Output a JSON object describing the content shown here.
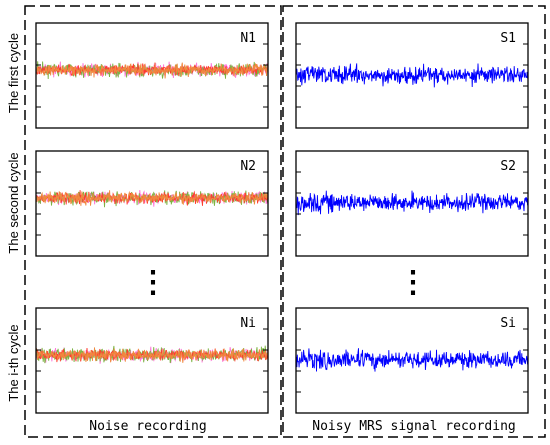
{
  "colors": {
    "noise_primary": "#f0883f",
    "noise_secondary": "#7cb342",
    "noise_tertiary": "#ff3b30",
    "noise_quaternary": "#ff77d9",
    "signal": "#0000ff",
    "border": "#000000"
  },
  "rows": [
    {
      "cycle_label": "The first cycle",
      "noise_label": "N1",
      "signal_label": "S1"
    },
    {
      "cycle_label": "The second cycle",
      "noise_label": "N2",
      "signal_label": "S2"
    },
    {
      "cycle_label": "The i-th cycle",
      "noise_label": "Ni",
      "signal_label": "Si"
    }
  ],
  "ellipsis": "⋮",
  "columns": {
    "left_caption": "Noise recording",
    "right_caption": "Noisy MRS signal recording"
  }
}
